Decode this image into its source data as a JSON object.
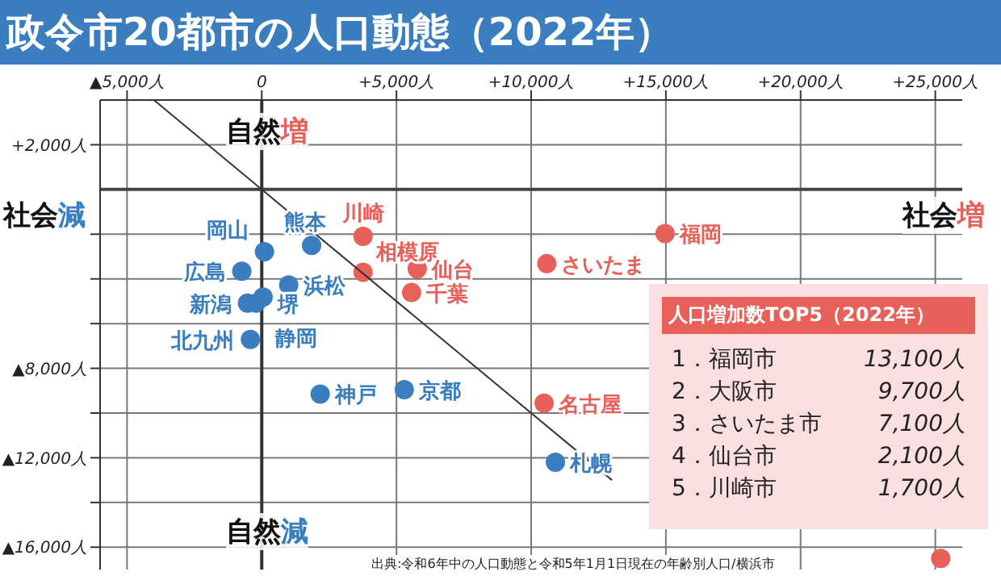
{
  "chart_data": {
    "type": "scatter",
    "title": "政令市20都市の人口動態（2022年）",
    "series": [
      {
        "color": "#3a7ebf",
        "x": [
          1850,
          100,
          -740,
          1000,
          -530,
          -210,
          50,
          -420,
          2170,
          5290,
          10900
        ],
        "values": [
          -2500,
          -2780,
          -3660,
          -4270,
          -5080,
          -5080,
          -4810,
          -6710,
          -9150,
          -8950,
          -12200
        ]
      },
      {
        "color": "#e8605a",
        "x": [
          3760,
          3760,
          5770,
          5560,
          10580,
          14970,
          10480,
          25200
        ],
        "values": [
          -2100,
          -3700,
          -3550,
          -4610,
          -3320,
          -1970,
          -9560,
          -16500
        ]
      },
      {
        "type": "line",
        "marker": "none",
        "color": "#333333",
        "x": [
          -4000,
          13000
        ],
        "values": [
          4000,
          -13000
        ]
      }
    ],
    "marker": "circle",
    "xlim": [
      -6000,
      26000
    ],
    "xticks": [
      {
        "value": -5000,
        "label": "▲5,000人"
      },
      {
        "value": 0,
        "label": "0"
      },
      {
        "value": 5000,
        "label": "+5,000人"
      },
      {
        "value": 10000,
        "label": "+10,000人"
      },
      {
        "value": 15000,
        "label": "+15,000人"
      },
      {
        "value": 20000,
        "label": "+20,000人"
      },
      {
        "value": 25000,
        "label": "+25,000人"
      }
    ],
    "ylim": [
      -17000,
      4000
    ],
    "yticks": [
      {
        "value": 2000,
        "label": "+2,000人"
      },
      {
        "value": -2000,
        "label": null
      },
      {
        "value": -4000,
        "label": null
      },
      {
        "value": -6000,
        "label": null
      },
      {
        "value": -8000,
        "label": "▲8,000人"
      },
      {
        "value": -10000,
        "label": null
      },
      {
        "value": -12000,
        "label": "▲12,000人"
      },
      {
        "value": -14000,
        "label": null
      },
      {
        "value": -16000,
        "label": "▲16,000人"
      }
    ],
    "grid": true,
    "ref_lines": [
      {
        "axis": "x",
        "value": 0,
        "color": "#333333"
      },
      {
        "axis": "y",
        "value": 0,
        "color": "#444444"
      }
    ],
    "annotations": [
      {
        "text": "熊本",
        "x": 1850,
        "y": -2500
      },
      {
        "text": "岡山",
        "x": 100,
        "y": -2780
      },
      {
        "text": "広島",
        "x": -740,
        "y": -3660
      },
      {
        "text": "浜松",
        "x": 1000,
        "y": -4270
      },
      {
        "text": "新潟",
        "x": -530,
        "y": -5080
      },
      {
        "text": "静岡",
        "x": -210,
        "y": -5080
      },
      {
        "text": "堺",
        "x": 50,
        "y": -4810
      },
      {
        "text": "北九州",
        "x": -420,
        "y": -6710
      },
      {
        "text": "神戸",
        "x": 2170,
        "y": -9150
      },
      {
        "text": "京都",
        "x": 5290,
        "y": -8950
      },
      {
        "text": "札幌",
        "x": 10900,
        "y": -12200
      },
      {
        "text": "川崎",
        "x": 3760,
        "y": -2100
      },
      {
        "text": "相模原",
        "x": 3760,
        "y": -3700
      },
      {
        "text": "仙台",
        "x": 5770,
        "y": -3550
      },
      {
        "text": "千葉",
        "x": 5560,
        "y": -4610
      },
      {
        "text": "さいたま",
        "x": 10580,
        "y": -3320
      },
      {
        "text": "福岡",
        "x": 14970,
        "y": -1970
      },
      {
        "text": "名古屋",
        "x": 10480,
        "y": -9560
      },
      "社会減",
      "社会増",
      "自然増",
      "自然減",
      "人口増加数TOP5（2022年）",
      "1．福岡市",
      "13,100人",
      "2．大阪市",
      "9,700人",
      "3．さいたま市",
      "7,100人",
      "4．仙台市",
      "2,100人",
      "5．川崎市",
      "1,700人",
      "出典:令和6年中の人口動態と令和5年1月1日現在の年齢別人口/横浜市"
    ]
  }
}
